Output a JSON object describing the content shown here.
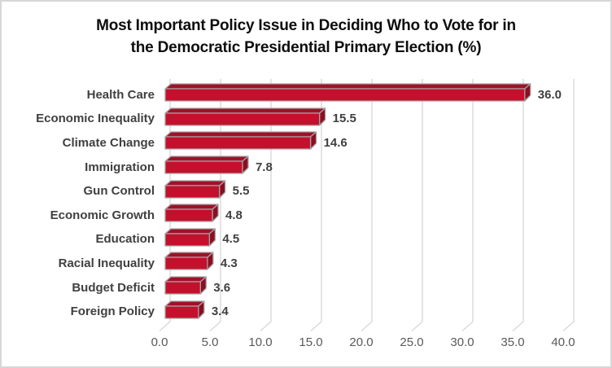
{
  "chart": {
    "title_lines": [
      "Most Important Policy Issue in Deciding Who to Vote for in",
      "the Democratic Presidential Primary Election (%)"
    ]
  },
  "chart_data": {
    "type": "bar",
    "orientation": "horizontal",
    "style": "3d",
    "title": "Most Important Policy Issue in Deciding Who to Vote for in the Democratic Presidential Primary Election (%)",
    "categories": [
      "Health Care",
      "Economic Inequality",
      "Climate Change",
      "Immigration",
      "Gun Control",
      "Economic Growth",
      "Education",
      "Racial Inequality",
      "Budget Deficit",
      "Foreign Policy"
    ],
    "values": [
      36.0,
      15.5,
      14.6,
      7.8,
      5.5,
      4.8,
      4.5,
      4.3,
      3.6,
      3.4
    ],
    "value_labels": [
      "36.0",
      "15.5",
      "14.6",
      "7.8",
      "5.5",
      "4.8",
      "4.5",
      "4.3",
      "3.6",
      "3.4"
    ],
    "x_ticks": [
      "0.0",
      "5.0",
      "10.0",
      "15.0",
      "20.0",
      "25.0",
      "30.0",
      "35.0",
      "40.0"
    ],
    "xlim": [
      0,
      40
    ],
    "xlabel": "",
    "ylabel": "",
    "grid": true,
    "legend": "none",
    "colors": {
      "bar_front": "#C4102C",
      "bar_top": "#A01127",
      "bar_end": "#8C0E22",
      "bar_outline": "#A3A3A3",
      "gridline": "#D9D9D9",
      "tick_label": "#595959",
      "category_label": "#404040",
      "value_label": "#404040",
      "title": "#0d0d0d"
    }
  }
}
